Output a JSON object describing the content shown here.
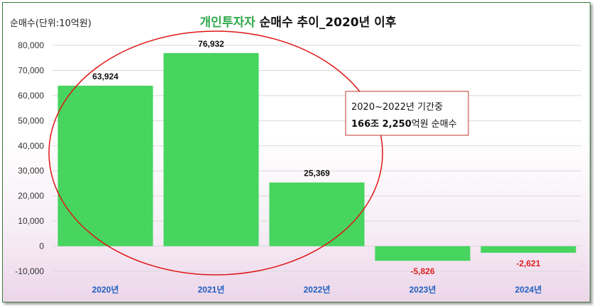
{
  "chart_data": {
    "type": "bar",
    "title_parts": [
      "개인투자자",
      " 순매수 추이_2020년 이후"
    ],
    "unit_label": "순매수(단위:10억원)",
    "categories": [
      "2020년",
      "2021년",
      "2022년",
      "2023년",
      "2024년"
    ],
    "values": [
      63924,
      76932,
      25369,
      -5826,
      -2621
    ],
    "value_labels": [
      "63,924",
      "76,932",
      "25,369",
      "-5,826",
      "-2,621"
    ],
    "ylim": [
      -10000,
      80000
    ],
    "yticks": [
      -10000,
      0,
      10000,
      20000,
      30000,
      40000,
      50000,
      60000,
      70000,
      80000
    ],
    "ytick_labels": [
      "-10,000",
      "0",
      "10,000",
      "20,000",
      "30,000",
      "40,000",
      "50,000",
      "60,000",
      "70,000",
      "80,000"
    ],
    "grid": true,
    "annotation": {
      "line1": "2020~2022년 기간중",
      "line2_bold": "166조 2,250",
      "line2_rest": "억원 순매수"
    },
    "colors": {
      "bar": "#47d45f",
      "title_highlight": "#2ea84a",
      "category_text": "#1f5fbf",
      "negative_label": "#e02020",
      "positive_label": "#111111",
      "ellipse": "#e01414",
      "annotation_border": "#c0392b"
    }
  }
}
